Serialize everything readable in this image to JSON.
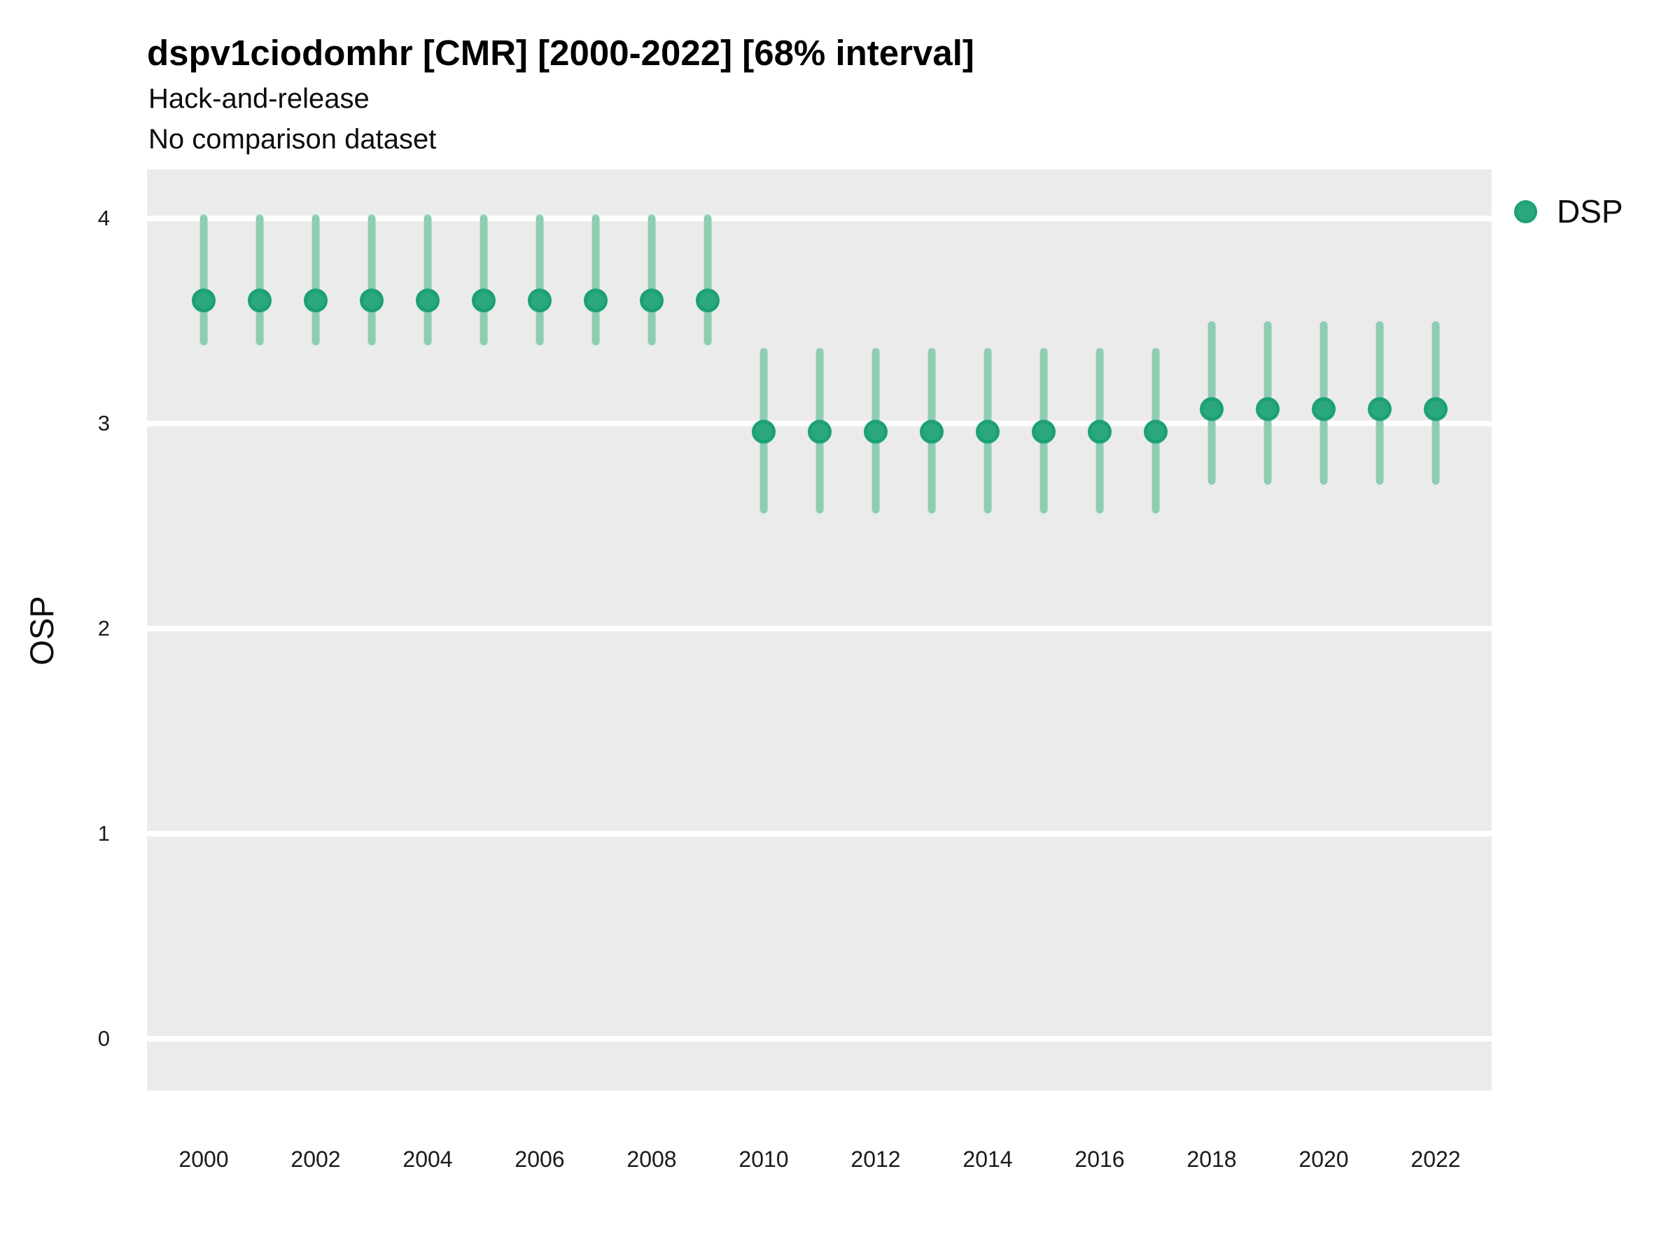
{
  "chart_data": {
    "type": "pointrange",
    "title": "dspv1ciodomhr [CMR] [2000-2022] [68% interval]",
    "subtitle_lines": [
      "Hack-and-release",
      "No comparison dataset"
    ],
    "ylabel": "OSP",
    "xlabel": "",
    "interval_label": "68% interval",
    "x": [
      2000,
      2001,
      2002,
      2003,
      2004,
      2005,
      2006,
      2007,
      2008,
      2009,
      2010,
      2011,
      2012,
      2013,
      2014,
      2015,
      2016,
      2017,
      2018,
      2019,
      2020,
      2021,
      2022
    ],
    "series": [
      {
        "name": "DSP",
        "mid": [
          3.6,
          3.6,
          3.6,
          3.6,
          3.6,
          3.6,
          3.6,
          3.6,
          3.6,
          3.6,
          2.96,
          2.96,
          2.96,
          2.96,
          2.96,
          2.96,
          2.96,
          2.96,
          3.07,
          3.07,
          3.07,
          3.07,
          3.07
        ],
        "lo": [
          3.4,
          3.4,
          3.4,
          3.4,
          3.4,
          3.4,
          3.4,
          3.4,
          3.4,
          3.4,
          2.58,
          2.58,
          2.58,
          2.58,
          2.58,
          2.58,
          2.58,
          2.58,
          2.72,
          2.72,
          2.72,
          2.72,
          2.72
        ],
        "hi": [
          4.0,
          4.0,
          4.0,
          4.0,
          4.0,
          4.0,
          4.0,
          4.0,
          4.0,
          4.0,
          3.35,
          3.35,
          3.35,
          3.35,
          3.35,
          3.35,
          3.35,
          3.35,
          3.48,
          3.48,
          3.48,
          3.48,
          3.48
        ]
      }
    ],
    "x_tick_labels": [
      "2000",
      "2002",
      "2004",
      "2006",
      "2008",
      "2010",
      "2012",
      "2014",
      "2016",
      "2018",
      "2020",
      "2022"
    ],
    "y_tick_labels": [
      "0",
      "1",
      "2",
      "3",
      "4"
    ],
    "y_tick_values": [
      0,
      1,
      2,
      3,
      4
    ],
    "ylim": [
      -0.25,
      4.25
    ],
    "grid": "horizontal-major-only",
    "legend_position": "right",
    "colors": {
      "point_fill": "#2BA87B",
      "point_border": "#1CA172",
      "range_line": "#8FCDB3",
      "panel_bg": "#EBEBEB",
      "gridline": "#FFFFFF",
      "text": "#1A1A1A"
    }
  }
}
